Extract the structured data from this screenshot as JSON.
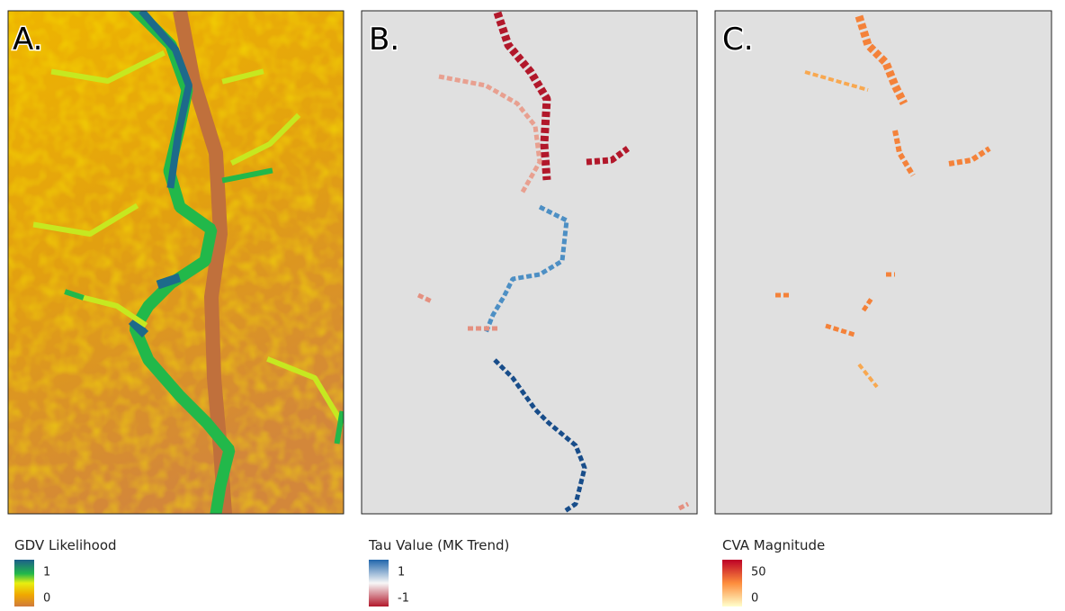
{
  "panels": [
    {
      "label": "A.",
      "legend": {
        "title": "GDV Likelihood",
        "max": "1",
        "min": "0"
      }
    },
    {
      "label": "B.",
      "legend": {
        "title": "Tau Value (MK Trend)",
        "max": "1",
        "min": "-1"
      }
    },
    {
      "label": "C.",
      "legend": {
        "title": "CVA Magnitude",
        "max": "50",
        "min": "0"
      }
    }
  ]
}
